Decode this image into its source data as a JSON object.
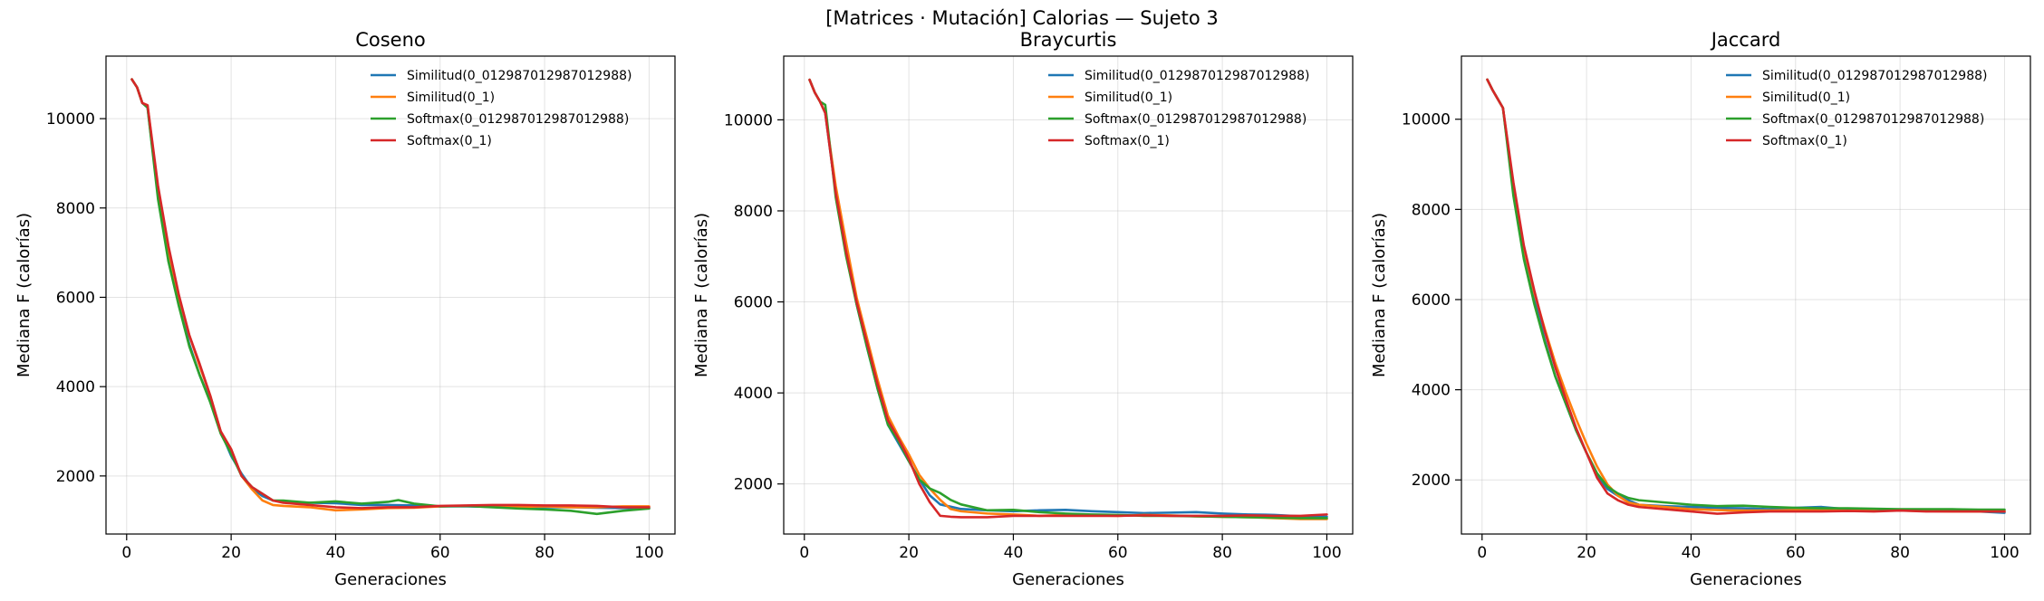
{
  "figure": {
    "suptitle": "[Matrices · Mutación] Calorias — Sujeto 3"
  },
  "colors": {
    "series": [
      "#1f77b4",
      "#ff7f0e",
      "#2ca02c",
      "#d62728"
    ]
  },
  "chart_data": [
    {
      "type": "line",
      "title": "Coseno",
      "xlabel": "Generaciones",
      "ylabel": "Mediana F (calorías)",
      "xlim": [
        -3.95,
        104.95
      ],
      "ylim": [
        700,
        11400
      ],
      "xticks": [
        0,
        20,
        40,
        60,
        80,
        100
      ],
      "yticks": [
        2000,
        4000,
        6000,
        8000,
        10000
      ],
      "grid": true,
      "legend_position": "top-right",
      "x_start": 1,
      "x_end": 100,
      "series": [
        {
          "name": "Similitud(0_012987012987012988)",
          "x": [
            1,
            2,
            3,
            4,
            6,
            8,
            10,
            12,
            14,
            16,
            18,
            20,
            22,
            24,
            26,
            28,
            30,
            35,
            40,
            45,
            50,
            55,
            60,
            65,
            70,
            75,
            80,
            85,
            90,
            95,
            100
          ],
          "y": [
            10880,
            10700,
            10350,
            10250,
            8300,
            6900,
            5850,
            4950,
            4250,
            3700,
            3000,
            2450,
            2050,
            1720,
            1550,
            1450,
            1420,
            1400,
            1390,
            1350,
            1350,
            1340,
            1320,
            1320,
            1310,
            1310,
            1300,
            1300,
            1290,
            1280,
            1280
          ]
        },
        {
          "name": "Similitud(0_1)",
          "x": [
            1,
            2,
            3,
            4,
            6,
            8,
            10,
            12,
            14,
            16,
            18,
            20,
            22,
            24,
            26,
            28,
            30,
            35,
            40,
            45,
            50,
            55,
            60,
            65,
            70,
            75,
            80,
            85,
            90,
            95,
            100
          ],
          "y": [
            10880,
            10700,
            10350,
            10300,
            8400,
            7050,
            6000,
            5150,
            4450,
            3800,
            3000,
            2600,
            2000,
            1700,
            1450,
            1350,
            1330,
            1300,
            1230,
            1250,
            1280,
            1290,
            1320,
            1330,
            1330,
            1310,
            1320,
            1300,
            1300,
            1320,
            1320
          ]
        },
        {
          "name": "Softmax(0_012987012987012988)",
          "x": [
            1,
            2,
            3,
            4,
            6,
            8,
            10,
            12,
            14,
            16,
            18,
            20,
            22,
            24,
            26,
            28,
            30,
            35,
            40,
            45,
            50,
            52,
            55,
            60,
            65,
            70,
            75,
            80,
            85,
            90,
            95,
            100
          ],
          "y": [
            10880,
            10700,
            10350,
            10250,
            8200,
            6800,
            5800,
            4900,
            4250,
            3650,
            2950,
            2500,
            2000,
            1750,
            1600,
            1450,
            1450,
            1400,
            1430,
            1380,
            1420,
            1460,
            1380,
            1320,
            1330,
            1300,
            1270,
            1250,
            1220,
            1150,
            1220,
            1270
          ]
        },
        {
          "name": "Softmax(0_1)",
          "x": [
            1,
            2,
            3,
            4,
            6,
            8,
            10,
            12,
            14,
            16,
            18,
            20,
            22,
            24,
            26,
            28,
            30,
            35,
            40,
            45,
            50,
            55,
            60,
            65,
            70,
            75,
            80,
            85,
            90,
            95,
            100
          ],
          "y": [
            10880,
            10700,
            10350,
            10300,
            8500,
            7150,
            6050,
            5150,
            4500,
            3800,
            3000,
            2600,
            2000,
            1750,
            1600,
            1450,
            1400,
            1350,
            1300,
            1280,
            1300,
            1300,
            1330,
            1340,
            1350,
            1350,
            1340,
            1340,
            1330,
            1300,
            1300
          ]
        }
      ]
    },
    {
      "type": "line",
      "title": "Braycurtis",
      "xlabel": "Generaciones",
      "ylabel": "Mediana F (calorías)",
      "xlim": [
        -3.95,
        104.95
      ],
      "ylim": [
        900,
        11400
      ],
      "xticks": [
        0,
        20,
        40,
        60,
        80,
        100
      ],
      "yticks": [
        2000,
        4000,
        6000,
        8000,
        10000
      ],
      "grid": true,
      "legend_position": "top-right",
      "series": [
        {
          "name": "Similitud(0_012987012987012988)",
          "x": [
            1,
            2,
            3,
            4,
            6,
            8,
            10,
            12,
            14,
            16,
            18,
            20,
            22,
            24,
            26,
            28,
            30,
            35,
            40,
            45,
            50,
            55,
            60,
            65,
            70,
            75,
            80,
            85,
            90,
            95,
            100
          ],
          "y": [
            10880,
            10600,
            10400,
            10150,
            8400,
            7100,
            5950,
            5000,
            4100,
            3300,
            2900,
            2500,
            2100,
            1750,
            1550,
            1500,
            1450,
            1420,
            1400,
            1420,
            1430,
            1400,
            1380,
            1360,
            1370,
            1380,
            1350,
            1330,
            1320,
            1290,
            1280
          ]
        },
        {
          "name": "Similitud(0_1)",
          "x": [
            1,
            2,
            3,
            4,
            6,
            8,
            10,
            12,
            14,
            16,
            18,
            20,
            22,
            24,
            26,
            28,
            30,
            35,
            40,
            45,
            50,
            55,
            60,
            65,
            70,
            75,
            80,
            85,
            90,
            95,
            100
          ],
          "y": [
            10880,
            10600,
            10400,
            10150,
            8550,
            7300,
            6100,
            5200,
            4300,
            3500,
            3050,
            2650,
            2200,
            1900,
            1650,
            1450,
            1400,
            1350,
            1330,
            1300,
            1320,
            1310,
            1300,
            1320,
            1310,
            1290,
            1280,
            1270,
            1250,
            1230,
            1230
          ]
        },
        {
          "name": "Softmax(0_012987012987012988)",
          "x": [
            1,
            2,
            3,
            4,
            6,
            8,
            10,
            12,
            14,
            16,
            18,
            20,
            22,
            24,
            26,
            28,
            30,
            35,
            40,
            45,
            50,
            55,
            60,
            65,
            70,
            75,
            80,
            85,
            90,
            95,
            100
          ],
          "y": [
            10880,
            10600,
            10400,
            10330,
            8300,
            7000,
            5950,
            5000,
            4100,
            3300,
            2950,
            2500,
            2100,
            1900,
            1800,
            1650,
            1550,
            1420,
            1430,
            1380,
            1350,
            1330,
            1320,
            1300,
            1300,
            1290,
            1280,
            1270,
            1260,
            1250,
            1250
          ]
        },
        {
          "name": "Softmax(0_1)",
          "x": [
            1,
            2,
            3,
            4,
            6,
            8,
            10,
            12,
            14,
            16,
            18,
            20,
            22,
            24,
            26,
            28,
            30,
            35,
            40,
            45,
            50,
            55,
            60,
            65,
            70,
            75,
            80,
            85,
            90,
            95,
            100
          ],
          "y": [
            10880,
            10600,
            10400,
            10150,
            8400,
            7100,
            6000,
            5100,
            4200,
            3400,
            3000,
            2550,
            2000,
            1600,
            1300,
            1280,
            1270,
            1270,
            1300,
            1300,
            1300,
            1300,
            1300,
            1310,
            1300,
            1300,
            1300,
            1310,
            1300,
            1300,
            1330
          ]
        }
      ]
    },
    {
      "type": "line",
      "title": "Jaccard",
      "xlabel": "Generaciones",
      "ylabel": "Mediana F (calorías)",
      "xlim": [
        -3.95,
        104.95
      ],
      "ylim": [
        800,
        11400
      ],
      "xticks": [
        0,
        20,
        40,
        60,
        80,
        100
      ],
      "yticks": [
        2000,
        4000,
        6000,
        8000,
        10000
      ],
      "grid": true,
      "legend_position": "top-right",
      "series": [
        {
          "name": "Similitud(0_012987012987012988)",
          "x": [
            1,
            2,
            3,
            4,
            6,
            8,
            10,
            12,
            14,
            16,
            18,
            20,
            22,
            24,
            26,
            28,
            30,
            35,
            40,
            45,
            50,
            55,
            60,
            65,
            70,
            75,
            80,
            85,
            90,
            95,
            100
          ],
          "y": [
            10880,
            10650,
            10450,
            10250,
            8400,
            7000,
            6000,
            5100,
            4300,
            3700,
            3100,
            2600,
            2100,
            1800,
            1650,
            1550,
            1450,
            1420,
            1400,
            1380,
            1370,
            1350,
            1380,
            1400,
            1350,
            1340,
            1330,
            1320,
            1310,
            1300,
            1270
          ]
        },
        {
          "name": "Similitud(0_1)",
          "x": [
            1,
            2,
            3,
            4,
            6,
            8,
            10,
            12,
            14,
            16,
            18,
            20,
            22,
            24,
            26,
            28,
            30,
            35,
            40,
            45,
            50,
            55,
            60,
            65,
            70,
            75,
            80,
            85,
            90,
            95,
            100
          ],
          "y": [
            10880,
            10650,
            10450,
            10250,
            8500,
            7150,
            6150,
            5350,
            4600,
            3950,
            3350,
            2800,
            2300,
            1900,
            1650,
            1500,
            1450,
            1400,
            1350,
            1330,
            1320,
            1320,
            1330,
            1330,
            1320,
            1320,
            1320,
            1310,
            1300,
            1300,
            1300
          ]
        },
        {
          "name": "Softmax(0_012987012987012988)",
          "x": [
            1,
            2,
            3,
            4,
            6,
            8,
            10,
            12,
            14,
            16,
            18,
            20,
            22,
            24,
            26,
            28,
            30,
            35,
            40,
            45,
            50,
            55,
            60,
            65,
            70,
            75,
            80,
            85,
            90,
            95,
            100
          ],
          "y": [
            10880,
            10650,
            10450,
            10250,
            8300,
            6900,
            5900,
            5050,
            4300,
            3700,
            3100,
            2600,
            2150,
            1850,
            1700,
            1600,
            1550,
            1500,
            1450,
            1420,
            1430,
            1400,
            1380,
            1370,
            1370,
            1360,
            1350,
            1350,
            1350,
            1340,
            1340
          ]
        },
        {
          "name": "Softmax(0_1)",
          "x": [
            1,
            2,
            3,
            4,
            6,
            8,
            10,
            12,
            14,
            16,
            18,
            20,
            22,
            24,
            26,
            28,
            30,
            35,
            40,
            45,
            50,
            55,
            60,
            65,
            70,
            75,
            80,
            85,
            90,
            95,
            100
          ],
          "y": [
            10880,
            10650,
            10450,
            10250,
            8600,
            7200,
            6200,
            5300,
            4500,
            3800,
            3150,
            2600,
            2050,
            1700,
            1550,
            1450,
            1400,
            1350,
            1300,
            1250,
            1280,
            1300,
            1300,
            1300,
            1310,
            1300,
            1320,
            1300,
            1300,
            1300,
            1300
          ]
        }
      ]
    }
  ]
}
